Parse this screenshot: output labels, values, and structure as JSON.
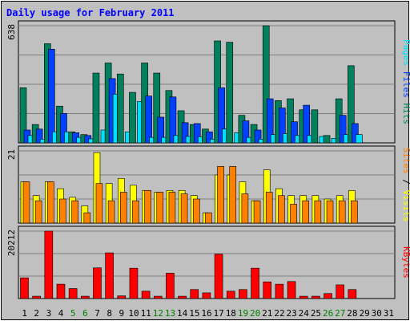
{
  "chart_data": [
    {
      "type": "bar",
      "title": "Daily usage for February 2011",
      "panel": "top",
      "max_label": "638",
      "ylim": [
        0,
        638
      ],
      "grid": true,
      "categories": [
        "1",
        "2",
        "3",
        "4",
        "5",
        "6",
        "7",
        "8",
        "9",
        "10",
        "11",
        "12",
        "13",
        "14",
        "15",
        "16",
        "17",
        "18",
        "19",
        "20",
        "21",
        "22",
        "23",
        "24",
        "25",
        "26",
        "27",
        "28",
        "29",
        "30",
        "31"
      ],
      "series": [
        {
          "name": "Hits",
          "color": "#00805c",
          "values": [
            300,
            100,
            540,
            200,
            60,
            45,
            380,
            435,
            375,
            275,
            435,
            380,
            285,
            175,
            100,
            75,
            555,
            548,
            150,
            100,
            638,
            230,
            240,
            180,
            180,
            40,
            240,
            420,
            0,
            0,
            0
          ]
        },
        {
          "name": "Files",
          "color": "#0040ff",
          "values": [
            70,
            75,
            510,
            160,
            55,
            40,
            0,
            350,
            0,
            0,
            255,
            140,
            250,
            110,
            105,
            60,
            300,
            0,
            120,
            70,
            240,
            190,
            115,
            205,
            0,
            0,
            150,
            105,
            0,
            0,
            0
          ]
        },
        {
          "name": "Pages",
          "color": "#00e0ff",
          "values": [
            40,
            20,
            60,
            60,
            30,
            22,
            70,
            265,
            60,
            225,
            30,
            30,
            40,
            35,
            33,
            20,
            75,
            55,
            30,
            20,
            45,
            50,
            40,
            40,
            35,
            25,
            45,
            45,
            0,
            0,
            0
          ]
        }
      ],
      "legend": [
        "Pages",
        "Files",
        "Hits"
      ],
      "legend_placement": "right, vertical"
    },
    {
      "type": "bar",
      "panel": "middle",
      "max_label": "21",
      "ylim": [
        0,
        21
      ],
      "grid": true,
      "categories": [
        "1",
        "2",
        "3",
        "4",
        "5",
        "6",
        "7",
        "8",
        "9",
        "10",
        "11",
        "12",
        "13",
        "14",
        "15",
        "16",
        "17",
        "18",
        "19",
        "20",
        "21",
        "22",
        "23",
        "24",
        "25",
        "26",
        "27",
        "28",
        "29",
        "30",
        "31"
      ],
      "series": [
        {
          "name": "Visits",
          "color": "#ffff00",
          "values": [
            12,
            8,
            12,
            10,
            7.5,
            5,
            20.5,
            11.5,
            13,
            11,
            9.5,
            9,
            9.5,
            9.5,
            8,
            3,
            14,
            14,
            12,
            6.5,
            15.5,
            10,
            8,
            8,
            8,
            7,
            8,
            9.5,
            0,
            0,
            0
          ]
        },
        {
          "name": "Sites",
          "color": "#ff8000",
          "values": [
            12,
            6.5,
            12,
            7,
            6.5,
            3,
            11.5,
            6.5,
            9,
            6.5,
            9.5,
            9,
            9,
            8.5,
            7,
            3,
            16.5,
            16.5,
            8.5,
            6.5,
            9,
            8,
            5.5,
            6.5,
            6.5,
            6.5,
            6.5,
            6.5,
            0,
            0,
            0
          ]
        }
      ],
      "legend": [
        "Sites",
        "/",
        "Visits"
      ],
      "legend_placement": "right, vertical"
    },
    {
      "type": "bar",
      "panel": "bottom",
      "max_label": "20212",
      "ylim": [
        0,
        20212
      ],
      "grid": true,
      "categories": [
        "1",
        "2",
        "3",
        "4",
        "5",
        "6",
        "7",
        "8",
        "9",
        "10",
        "11",
        "12",
        "13",
        "14",
        "15",
        "16",
        "17",
        "18",
        "19",
        "20",
        "21",
        "22",
        "23",
        "24",
        "25",
        "26",
        "27",
        "28",
        "29",
        "30",
        "31"
      ],
      "weekend_days": [
        5,
        6,
        12,
        13,
        19,
        20,
        26,
        27
      ],
      "series": [
        {
          "name": "KBytes",
          "color": "#ff0000",
          "values": [
            6200,
            700,
            20212,
            4300,
            3000,
            700,
            9200,
            13700,
            800,
            9100,
            2200,
            700,
            7600,
            700,
            2700,
            1700,
            13300,
            2200,
            2700,
            9100,
            5000,
            4300,
            5100,
            700,
            700,
            1500,
            4100,
            2700,
            0,
            0,
            0
          ]
        }
      ],
      "legend": [
        "KBytes"
      ],
      "legend_placement": "right, vertical"
    }
  ]
}
